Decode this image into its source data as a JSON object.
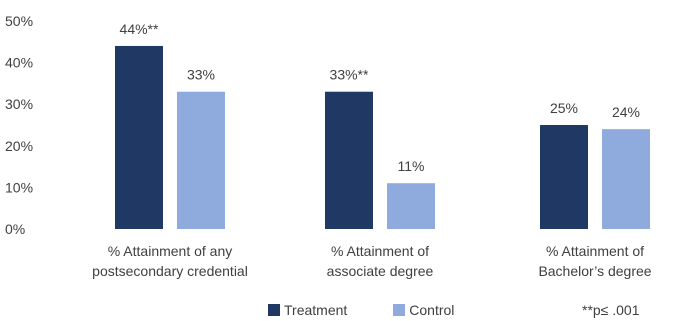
{
  "chart_data": {
    "type": "bar",
    "categories": [
      [
        "% Attainment of any",
        "postsecondary credential"
      ],
      [
        "% Attainment of",
        "associate degree"
      ],
      [
        "% Attainment of",
        "Bachelor’s degree"
      ]
    ],
    "series": [
      {
        "name": "Treatment",
        "color": "#1f3864",
        "values": [
          44,
          33,
          25
        ],
        "labels": [
          "44%**",
          "33%**",
          "25%"
        ]
      },
      {
        "name": "Control",
        "color": "#8faadc",
        "values": [
          33,
          11,
          24
        ],
        "labels": [
          "33%",
          "11%",
          "24%"
        ]
      }
    ],
    "y_ticks": [
      "0%",
      "10%",
      "20%",
      "30%",
      "40%",
      "50%"
    ],
    "ylim": [
      0,
      50
    ],
    "grid": false,
    "legend_position": "bottom",
    "note": "**p≤ .001"
  }
}
